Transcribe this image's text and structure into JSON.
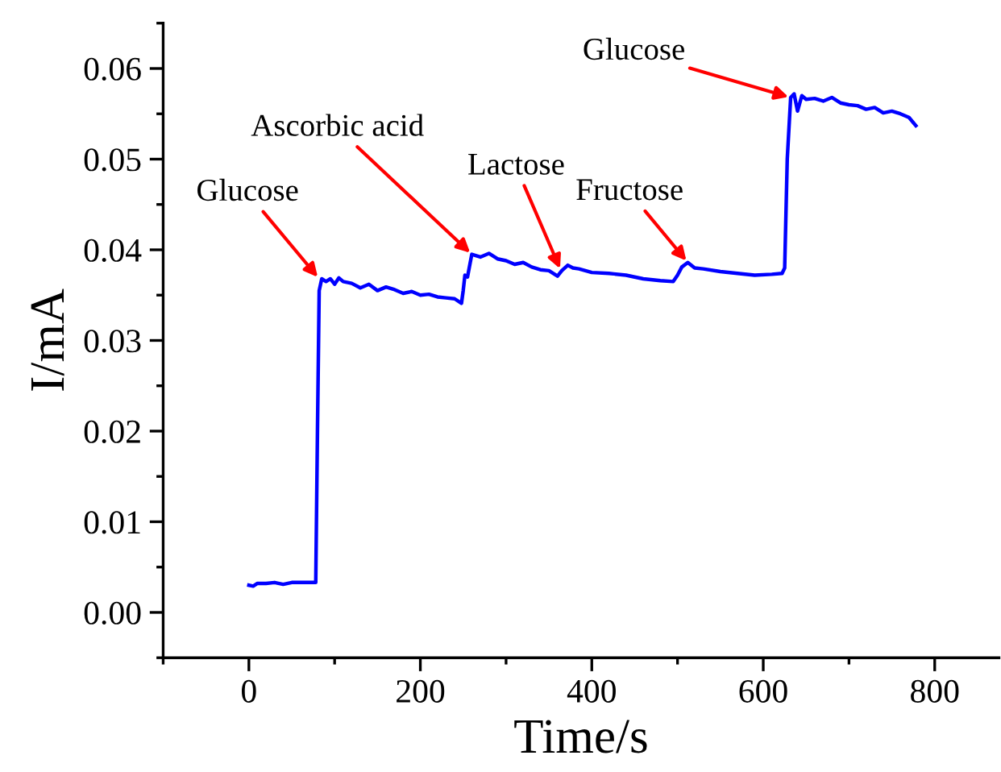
{
  "chart_data": {
    "type": "line",
    "xlabel": "Time/s",
    "ylabel": "I/mA",
    "xlim": [
      -100,
      875
    ],
    "ylim": [
      -0.005,
      0.065
    ],
    "xticks": [
      0,
      200,
      400,
      600,
      800
    ],
    "yticks": [
      {
        "value": 0,
        "label": "0.00"
      },
      {
        "value": 0.01,
        "label": "0.01"
      },
      {
        "value": 0.02,
        "label": "0.02"
      },
      {
        "value": 0.03,
        "label": "0.03"
      },
      {
        "value": 0.04,
        "label": "0.04"
      },
      {
        "value": 0.05,
        "label": "0.05"
      },
      {
        "value": 0.06,
        "label": "0.06"
      }
    ],
    "grid": false,
    "marker": "none",
    "line_style": "solid",
    "series": [
      {
        "color": "#0000ff",
        "x": [
          0,
          5,
          10,
          20,
          30,
          40,
          50,
          60,
          70,
          78,
          80,
          82,
          85,
          90,
          95,
          100,
          105,
          110,
          120,
          130,
          140,
          150,
          160,
          170,
          180,
          190,
          200,
          210,
          220,
          230,
          240,
          248,
          250,
          252,
          255,
          260,
          270,
          280,
          290,
          300,
          310,
          320,
          330,
          340,
          350,
          360,
          365,
          372,
          378,
          385,
          400,
          420,
          440,
          460,
          480,
          495,
          500,
          505,
          512,
          520,
          530,
          550,
          570,
          590,
          610,
          622,
          625,
          628,
          632,
          636,
          640,
          645,
          650,
          660,
          670,
          680,
          690,
          700,
          710,
          720,
          730,
          740,
          750,
          760,
          770,
          778
        ],
        "values": [
          0.003,
          0.0029,
          0.0032,
          0.0032,
          0.0033,
          0.0031,
          0.0033,
          0.0033,
          0.0033,
          0.0033,
          0.02,
          0.0355,
          0.0368,
          0.0365,
          0.0368,
          0.0362,
          0.0369,
          0.0365,
          0.0363,
          0.0358,
          0.0362,
          0.0355,
          0.0359,
          0.0356,
          0.0352,
          0.0354,
          0.035,
          0.0351,
          0.0348,
          0.0347,
          0.0346,
          0.0341,
          0.0355,
          0.0372,
          0.037,
          0.0395,
          0.0392,
          0.0396,
          0.039,
          0.0388,
          0.0384,
          0.0386,
          0.0381,
          0.0378,
          0.0377,
          0.0371,
          0.0377,
          0.0383,
          0.038,
          0.0379,
          0.0375,
          0.0374,
          0.0372,
          0.0368,
          0.0366,
          0.0365,
          0.0372,
          0.0381,
          0.0386,
          0.038,
          0.0379,
          0.0376,
          0.0374,
          0.0372,
          0.0373,
          0.0374,
          0.038,
          0.05,
          0.0568,
          0.0572,
          0.0553,
          0.057,
          0.0566,
          0.0567,
          0.0564,
          0.0568,
          0.0562,
          0.056,
          0.0559,
          0.0555,
          0.0557,
          0.0551,
          0.0553,
          0.055,
          0.0546,
          0.0537
        ]
      }
    ],
    "annotations": [
      {
        "text": "Glucose",
        "x": 82,
        "y": 0.0368
      },
      {
        "text": "Ascorbic acid",
        "x": 260,
        "y": 0.0395
      },
      {
        "text": "Lactose",
        "x": 364,
        "y": 0.0377
      },
      {
        "text": "Fructose",
        "x": 512,
        "y": 0.0386
      },
      {
        "text": "Glucose",
        "x": 632,
        "y": 0.0568
      }
    ]
  }
}
